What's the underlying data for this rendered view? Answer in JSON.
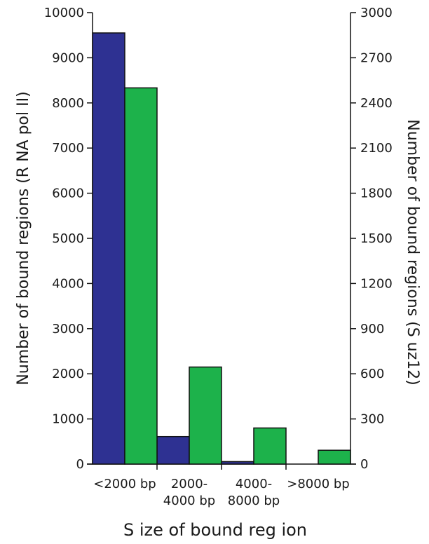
{
  "chart_data": {
    "type": "bar",
    "xlabel": "S ize of  bound reg ion",
    "ylabel_left": "Number of bound regions  (R NA pol II)",
    "ylabel_right": "Number of bound regions  (S uz12)",
    "categories": [
      [
        "<2000 bp"
      ],
      [
        "2000-",
        "4000 bp"
      ],
      [
        "4000-",
        "8000 bp"
      ],
      [
        ">8000 bp"
      ]
    ],
    "ylim_left": [
      0,
      10000
    ],
    "ylim_right": [
      0,
      3000
    ],
    "yticks_left": [
      0,
      1000,
      2000,
      3000,
      4000,
      5000,
      6000,
      7000,
      8000,
      9000,
      10000
    ],
    "yticks_right": [
      0,
      300,
      600,
      900,
      1200,
      1500,
      1800,
      2100,
      2400,
      2700,
      3000
    ],
    "series": [
      {
        "axis": "left",
        "color": "#2e3192",
        "values": [
          9550,
          610,
          55,
          0
        ]
      },
      {
        "axis": "right",
        "color": "#1db24b",
        "values": [
          2500,
          645,
          240,
          92
        ]
      }
    ],
    "grid": false,
    "legend": "none"
  }
}
